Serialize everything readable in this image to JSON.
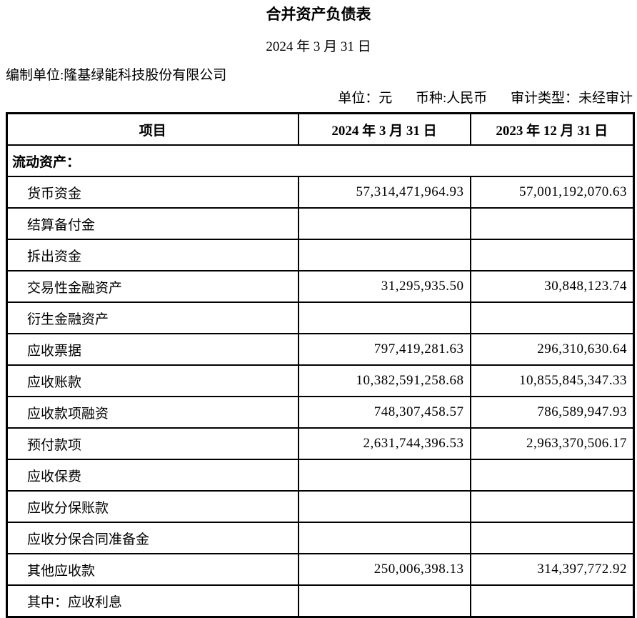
{
  "doc": {
    "title": "合并资产负债表",
    "date": "2024 年 3 月 31 日",
    "preparer": "编制单位:隆基绿能科技股份有限公司",
    "meta": {
      "unit": "单位：元",
      "currency": "币种:人民币",
      "audit": "审计类型：未经审计"
    }
  },
  "table": {
    "headers": {
      "item": "项目",
      "y2024": "2024 年 3 月 31 日",
      "y2023": "2023 年 12 月 31 日"
    },
    "rows": [
      {
        "label": "流动资产：",
        "section": true,
        "y2024": "",
        "y2023": ""
      },
      {
        "label": "货币资金",
        "section": false,
        "y2024": "57,314,471,964.93",
        "y2023": "57,001,192,070.63"
      },
      {
        "label": "结算备付金",
        "section": false,
        "y2024": "",
        "y2023": ""
      },
      {
        "label": "拆出资金",
        "section": false,
        "y2024": "",
        "y2023": ""
      },
      {
        "label": "交易性金融资产",
        "section": false,
        "y2024": "31,295,935.50",
        "y2023": "30,848,123.74"
      },
      {
        "label": "衍生金融资产",
        "section": false,
        "y2024": "",
        "y2023": ""
      },
      {
        "label": "应收票据",
        "section": false,
        "y2024": "797,419,281.63",
        "y2023": "296,310,630.64"
      },
      {
        "label": "应收账款",
        "section": false,
        "y2024": "10,382,591,258.68",
        "y2023": "10,855,845,347.33"
      },
      {
        "label": "应收款项融资",
        "section": false,
        "y2024": "748,307,458.57",
        "y2023": "786,589,947.93"
      },
      {
        "label": "预付款项",
        "section": false,
        "y2024": "2,631,744,396.53",
        "y2023": "2,963,370,506.17"
      },
      {
        "label": "应收保费",
        "section": false,
        "y2024": "",
        "y2023": ""
      },
      {
        "label": "应收分保账款",
        "section": false,
        "y2024": "",
        "y2023": ""
      },
      {
        "label": "应收分保合同准备金",
        "section": false,
        "y2024": "",
        "y2023": ""
      },
      {
        "label": "其他应收款",
        "section": false,
        "y2024": "250,006,398.13",
        "y2023": "314,397,772.92"
      },
      {
        "label": "其中：应收利息",
        "section": false,
        "y2024": "",
        "y2023": ""
      }
    ]
  }
}
